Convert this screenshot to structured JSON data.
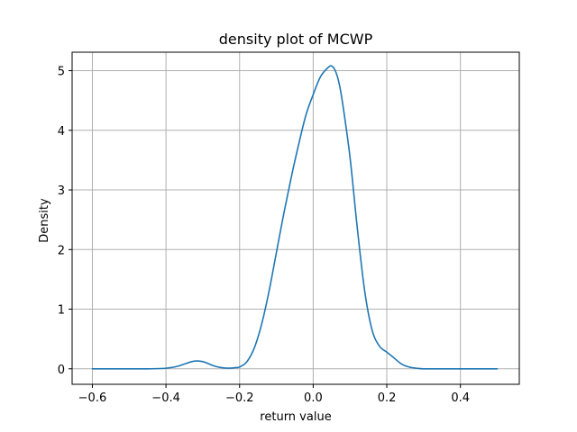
{
  "chart_data": {
    "type": "line",
    "title": "density plot of MCWP",
    "xlabel": "return value",
    "ylabel": "Density",
    "xlim": [
      -0.655,
      0.56
    ],
    "ylim": [
      -0.26,
      5.31
    ],
    "grid": true,
    "x_ticks": [
      -0.6,
      -0.4,
      -0.2,
      0.0,
      0.2,
      0.4
    ],
    "x_tick_labels": [
      "−0.6",
      "−0.4",
      "−0.2",
      "0.0",
      "0.2",
      "0.4"
    ],
    "y_ticks": [
      0,
      1,
      2,
      3,
      4,
      5
    ],
    "y_tick_labels": [
      "0",
      "1",
      "2",
      "3",
      "4",
      "5"
    ],
    "series": [
      {
        "color": "#1f77b4",
        "x": [
          -0.6,
          -0.5,
          -0.45,
          -0.4,
          -0.37,
          -0.35,
          -0.33,
          -0.32,
          -0.31,
          -0.3,
          -0.29,
          -0.27,
          -0.25,
          -0.23,
          -0.21,
          -0.2,
          -0.18,
          -0.16,
          -0.14,
          -0.12,
          -0.1,
          -0.08,
          -0.06,
          -0.04,
          -0.02,
          0.0,
          0.02,
          0.04,
          0.05,
          0.06,
          0.07,
          0.08,
          0.1,
          0.12,
          0.14,
          0.16,
          0.18,
          0.2,
          0.22,
          0.24,
          0.26,
          0.28,
          0.3,
          0.35,
          0.4,
          0.45,
          0.5
        ],
        "y": [
          0.0,
          0.0,
          0.0,
          0.01,
          0.04,
          0.08,
          0.12,
          0.13,
          0.13,
          0.12,
          0.1,
          0.05,
          0.02,
          0.01,
          0.02,
          0.03,
          0.12,
          0.35,
          0.75,
          1.3,
          1.95,
          2.6,
          3.2,
          3.75,
          4.25,
          4.6,
          4.9,
          5.05,
          5.08,
          5.0,
          4.8,
          4.45,
          3.55,
          2.35,
          1.3,
          0.65,
          0.38,
          0.28,
          0.18,
          0.08,
          0.03,
          0.01,
          0.0,
          0.0,
          0.0,
          0.0,
          0.0
        ]
      }
    ]
  }
}
